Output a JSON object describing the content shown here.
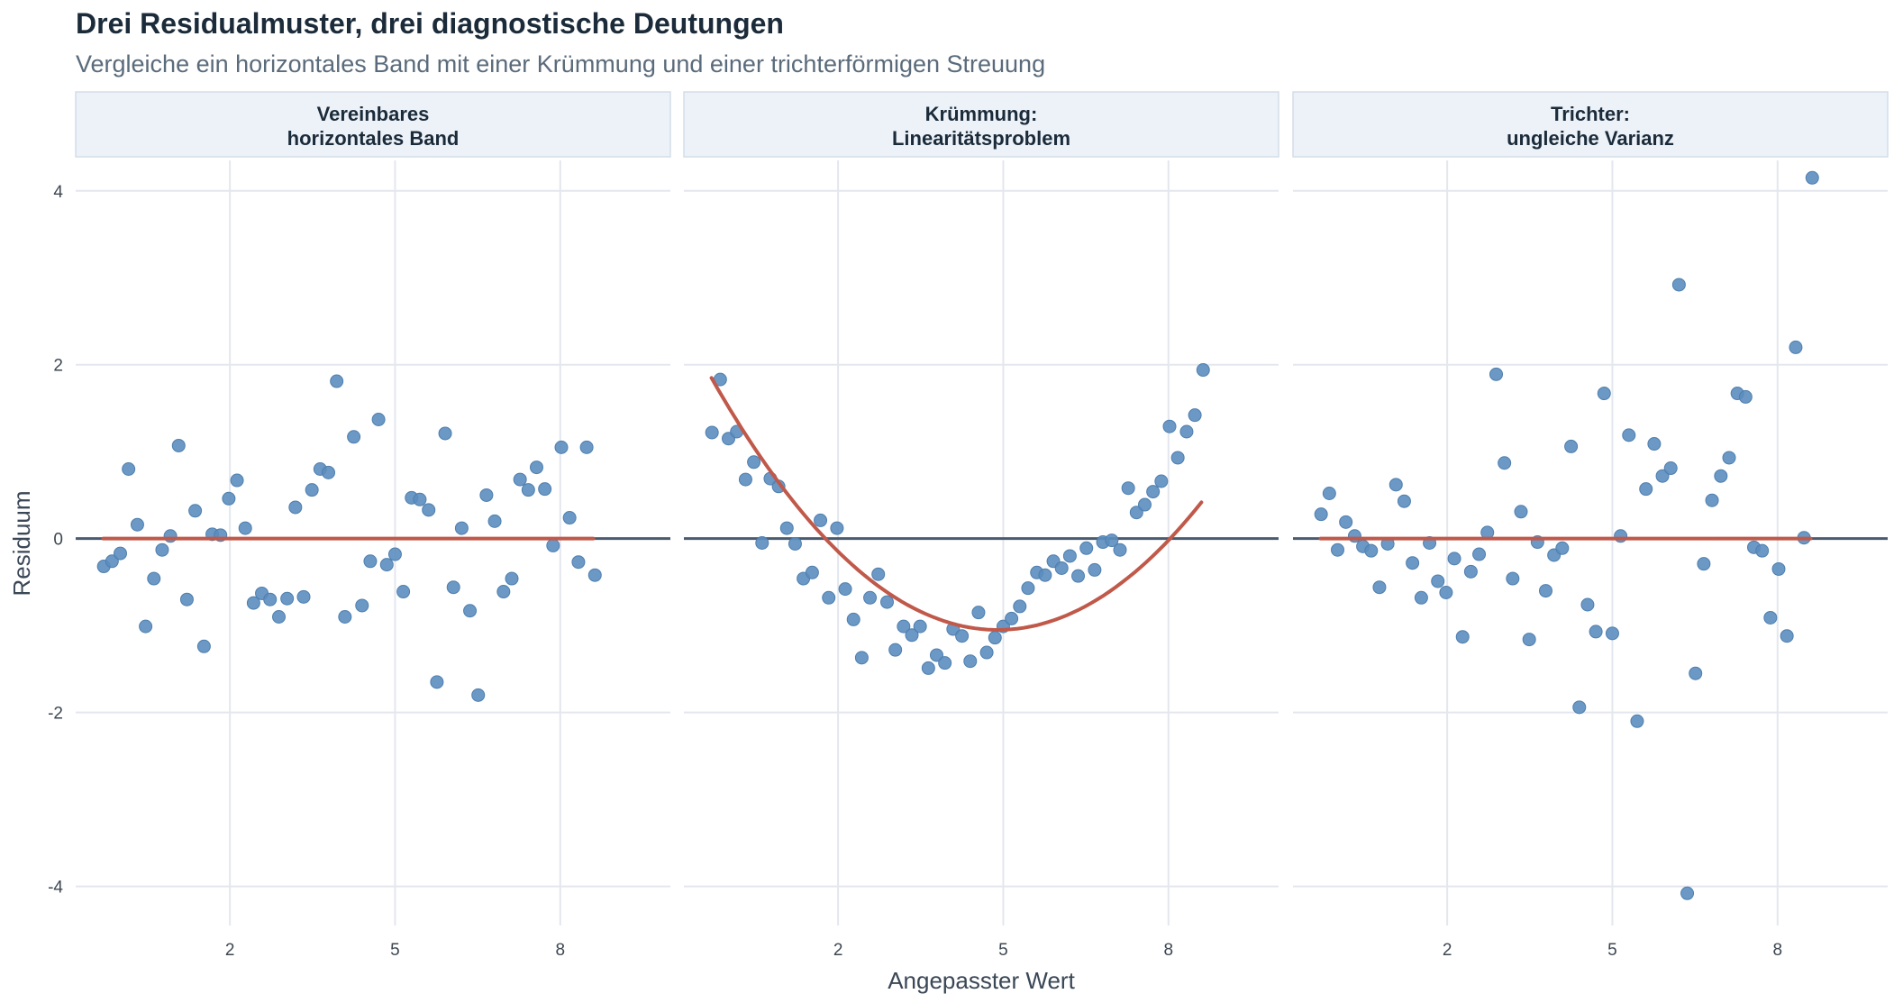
{
  "title": "Drei Residualmuster, drei diagnostische Deutungen",
  "subtitle": "Vergleiche ein horizontales Band mit einer Krümmung und einer trichterförmigen Streuung",
  "colors": {
    "points": "#5b8dbf",
    "fit_line": "#c0594a",
    "zero_line": "#4a5a6e",
    "grid": "#e3e7ee",
    "strip_bg": "#edf2f8",
    "strip_border": "#d3dde8"
  },
  "chart_data": {
    "type": "scatter",
    "xlabel": "Angepasster Wert",
    "ylabel": "Residuum",
    "xlim": [
      -0.8,
      10.0
    ],
    "ylim": [
      -4.45,
      4.35
    ],
    "xticks": [
      2,
      5,
      8
    ],
    "yticks": [
      -4,
      -2,
      0,
      2,
      4
    ],
    "grid": true,
    "panels": [
      {
        "label_lines": [
          "Vereinbares",
          "horizontales Band"
        ],
        "smooth": [
          [
            -0.3,
            0.0
          ],
          [
            8.6,
            0.0
          ]
        ],
        "points": [
          [
            -0.29,
            -0.32
          ],
          [
            -0.14,
            -0.26
          ],
          [
            0.01,
            -0.17
          ],
          [
            0.16,
            0.8
          ],
          [
            0.32,
            0.16
          ],
          [
            0.47,
            -1.01
          ],
          [
            0.62,
            -0.46
          ],
          [
            0.77,
            -0.13
          ],
          [
            0.92,
            0.03
          ],
          [
            1.07,
            1.07
          ],
          [
            1.22,
            -0.7
          ],
          [
            1.37,
            0.32
          ],
          [
            1.53,
            -1.24
          ],
          [
            1.68,
            0.05
          ],
          [
            1.83,
            0.04
          ],
          [
            1.98,
            0.46
          ],
          [
            2.13,
            0.67
          ],
          [
            2.28,
            0.12
          ],
          [
            2.43,
            -0.74
          ],
          [
            2.58,
            -0.63
          ],
          [
            2.73,
            -0.7
          ],
          [
            2.89,
            -0.9
          ],
          [
            3.04,
            -0.69
          ],
          [
            3.19,
            0.36
          ],
          [
            3.34,
            -0.67
          ],
          [
            3.49,
            0.56
          ],
          [
            3.64,
            0.8
          ],
          [
            3.79,
            0.76
          ],
          [
            3.94,
            1.81
          ],
          [
            4.09,
            -0.9
          ],
          [
            4.25,
            1.17
          ],
          [
            4.4,
            -0.77
          ],
          [
            4.55,
            -0.26
          ],
          [
            4.7,
            1.37
          ],
          [
            4.85,
            -0.3
          ],
          [
            5.0,
            -0.18
          ],
          [
            5.15,
            -0.61
          ],
          [
            5.3,
            0.47
          ],
          [
            5.45,
            0.45
          ],
          [
            5.61,
            0.33
          ],
          [
            5.76,
            -1.65
          ],
          [
            5.91,
            1.21
          ],
          [
            6.06,
            -0.56
          ],
          [
            6.21,
            0.12
          ],
          [
            6.36,
            -0.83
          ],
          [
            6.51,
            -1.8
          ],
          [
            6.66,
            0.5
          ],
          [
            6.81,
            0.2
          ],
          [
            6.97,
            -0.61
          ],
          [
            7.12,
            -0.46
          ],
          [
            7.27,
            0.68
          ],
          [
            7.42,
            0.56
          ],
          [
            7.57,
            0.82
          ],
          [
            7.72,
            0.57
          ],
          [
            7.87,
            -0.08
          ],
          [
            8.02,
            1.05
          ],
          [
            8.17,
            0.24
          ],
          [
            8.33,
            -0.27
          ],
          [
            8.48,
            1.05
          ],
          [
            8.63,
            -0.42
          ]
        ]
      },
      {
        "label_lines": [
          "Krümmung:",
          "Linearitätsproblem"
        ],
        "smooth": "quadratic",
        "curve": {
          "a": 0.1072,
          "vertex_x": 4.9,
          "vertex_y": -1.05,
          "from": -0.3,
          "to": 8.6
        },
        "points": [
          [
            -0.29,
            1.22
          ],
          [
            -0.14,
            1.83
          ],
          [
            0.01,
            1.15
          ],
          [
            0.16,
            1.23
          ],
          [
            0.32,
            0.68
          ],
          [
            0.47,
            0.88
          ],
          [
            0.62,
            -0.05
          ],
          [
            0.77,
            0.69
          ],
          [
            0.92,
            0.6
          ],
          [
            1.07,
            0.12
          ],
          [
            1.22,
            -0.06
          ],
          [
            1.37,
            -0.46
          ],
          [
            1.53,
            -0.39
          ],
          [
            1.68,
            0.21
          ],
          [
            1.83,
            -0.68
          ],
          [
            1.98,
            0.12
          ],
          [
            2.13,
            -0.58
          ],
          [
            2.28,
            -0.93
          ],
          [
            2.43,
            -1.37
          ],
          [
            2.58,
            -0.68
          ],
          [
            2.73,
            -0.41
          ],
          [
            2.89,
            -0.73
          ],
          [
            3.04,
            -1.28
          ],
          [
            3.19,
            -1.01
          ],
          [
            3.34,
            -1.11
          ],
          [
            3.49,
            -1.01
          ],
          [
            3.64,
            -1.49
          ],
          [
            3.79,
            -1.34
          ],
          [
            3.94,
            -1.43
          ],
          [
            4.09,
            -1.04
          ],
          [
            4.25,
            -1.12
          ],
          [
            4.4,
            -1.41
          ],
          [
            4.55,
            -0.85
          ],
          [
            4.7,
            -1.31
          ],
          [
            4.85,
            -1.14
          ],
          [
            5.0,
            -1.01
          ],
          [
            5.15,
            -0.92
          ],
          [
            5.3,
            -0.78
          ],
          [
            5.45,
            -0.57
          ],
          [
            5.61,
            -0.39
          ],
          [
            5.76,
            -0.42
          ],
          [
            5.91,
            -0.26
          ],
          [
            6.06,
            -0.34
          ],
          [
            6.21,
            -0.2
          ],
          [
            6.36,
            -0.43
          ],
          [
            6.51,
            -0.11
          ],
          [
            6.66,
            -0.36
          ],
          [
            6.81,
            -0.04
          ],
          [
            6.97,
            -0.02
          ],
          [
            7.12,
            -0.13
          ],
          [
            7.27,
            0.58
          ],
          [
            7.42,
            0.3
          ],
          [
            7.57,
            0.39
          ],
          [
            7.72,
            0.54
          ],
          [
            7.87,
            0.66
          ],
          [
            8.02,
            1.29
          ],
          [
            8.17,
            0.93
          ],
          [
            8.33,
            1.23
          ],
          [
            8.48,
            1.42
          ],
          [
            8.63,
            1.94
          ]
        ]
      },
      {
        "label_lines": [
          "Trichter:",
          "ungleiche Varianz"
        ],
        "smooth": [
          [
            -0.3,
            0.0
          ],
          [
            8.6,
            0.0
          ]
        ],
        "points": [
          [
            -0.29,
            0.28
          ],
          [
            -0.14,
            0.52
          ],
          [
            0.01,
            -0.13
          ],
          [
            0.16,
            0.19
          ],
          [
            0.32,
            0.03
          ],
          [
            0.47,
            -0.09
          ],
          [
            0.62,
            -0.14
          ],
          [
            0.77,
            -0.56
          ],
          [
            0.92,
            -0.06
          ],
          [
            1.07,
            0.62
          ],
          [
            1.22,
            0.43
          ],
          [
            1.37,
            -0.28
          ],
          [
            1.53,
            -0.68
          ],
          [
            1.68,
            -0.05
          ],
          [
            1.83,
            -0.49
          ],
          [
            1.98,
            -0.62
          ],
          [
            2.13,
            -0.23
          ],
          [
            2.28,
            -1.13
          ],
          [
            2.43,
            -0.38
          ],
          [
            2.58,
            -0.18
          ],
          [
            2.73,
            0.07
          ],
          [
            2.89,
            1.89
          ],
          [
            3.04,
            0.87
          ],
          [
            3.19,
            -0.46
          ],
          [
            3.34,
            0.31
          ],
          [
            3.49,
            -1.16
          ],
          [
            3.64,
            -0.04
          ],
          [
            3.79,
            -0.6
          ],
          [
            3.94,
            -0.19
          ],
          [
            4.09,
            -0.11
          ],
          [
            4.25,
            1.06
          ],
          [
            4.4,
            -1.94
          ],
          [
            4.55,
            -0.76
          ],
          [
            4.7,
            -1.07
          ],
          [
            4.85,
            1.67
          ],
          [
            5.0,
            -1.09
          ],
          [
            5.15,
            0.03
          ],
          [
            5.3,
            1.19
          ],
          [
            5.45,
            -2.1
          ],
          [
            5.61,
            0.57
          ],
          [
            5.76,
            1.09
          ],
          [
            5.91,
            0.72
          ],
          [
            6.06,
            0.81
          ],
          [
            6.21,
            2.92
          ],
          [
            6.36,
            -4.08
          ],
          [
            6.51,
            -1.55
          ],
          [
            6.66,
            -0.29
          ],
          [
            6.81,
            0.44
          ],
          [
            6.97,
            0.72
          ],
          [
            7.12,
            0.93
          ],
          [
            7.27,
            1.67
          ],
          [
            7.42,
            1.63
          ],
          [
            7.57,
            -0.1
          ],
          [
            7.72,
            -0.14
          ],
          [
            7.87,
            -0.91
          ],
          [
            8.02,
            -0.35
          ],
          [
            8.17,
            -1.12
          ],
          [
            8.33,
            2.2
          ],
          [
            8.48,
            0.01
          ],
          [
            8.63,
            4.15
          ]
        ]
      }
    ]
  }
}
